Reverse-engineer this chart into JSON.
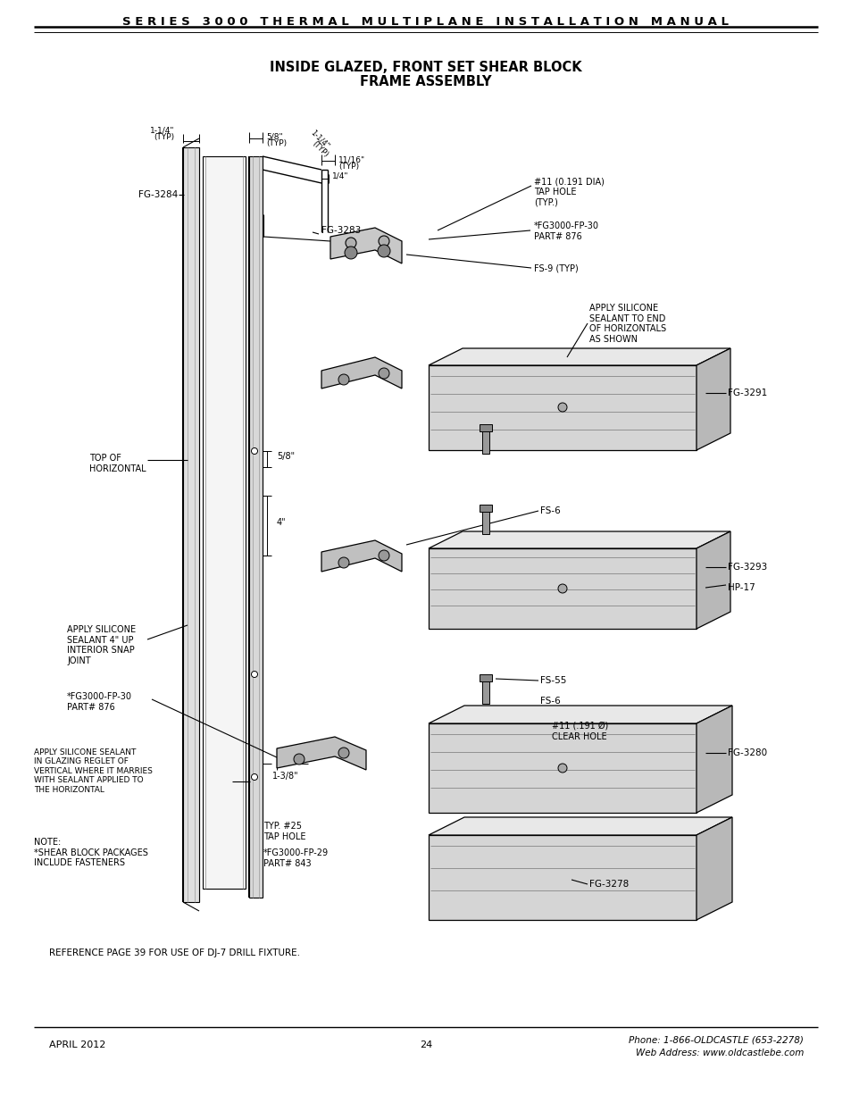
{
  "header_text": "S E R I E S   3 0 0 0   T H E R M A L   M U L T I P L A N E   I N S T A L L A T I O N   M A N U A L",
  "title_line1": "INSIDE GLAZED, FRONT SET SHEAR BLOCK",
  "title_line2": "FRAME ASSEMBLY",
  "footer_left": "APRIL 2012",
  "footer_center": "24",
  "footer_right_line1": "Phone: 1-866-OLDCASTLE (653-2278)",
  "footer_right_line2": "Web Address: www.oldcastlebe.com",
  "ref_note": "REFERENCE PAGE 39 FOR USE OF DJ-7 DRILL FIXTURE.",
  "bg_color": "#ffffff",
  "figsize": [
    9.54,
    12.35
  ],
  "dpi": 100
}
